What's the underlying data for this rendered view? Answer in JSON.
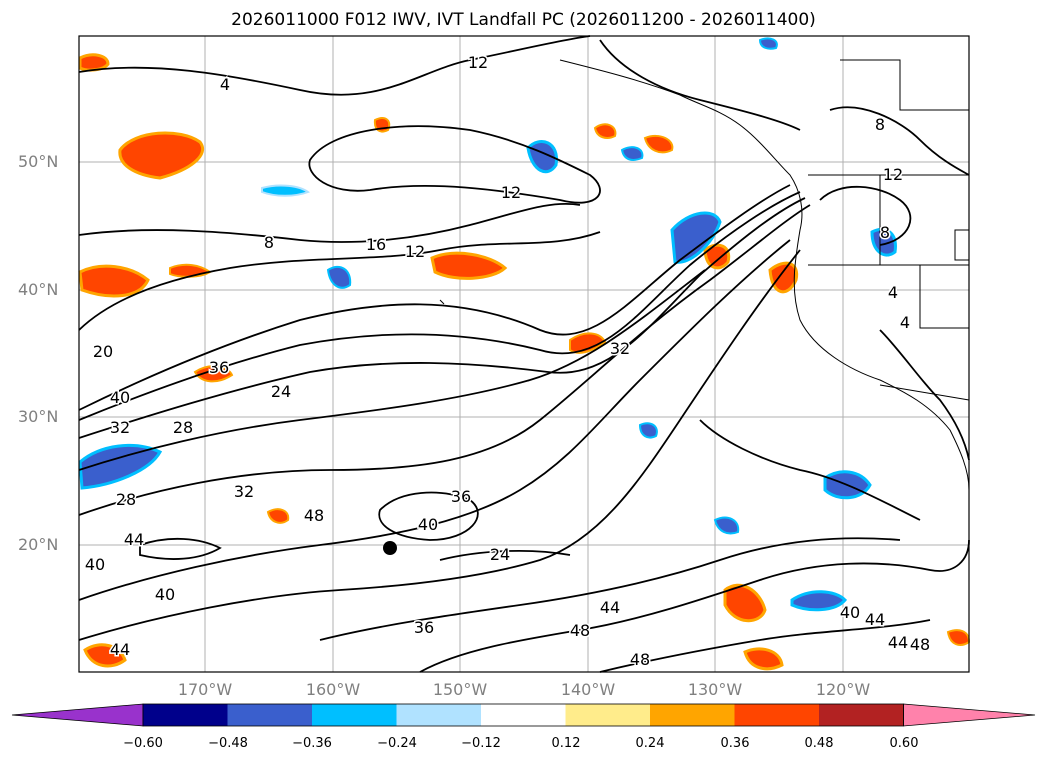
{
  "title": "2026011000 F012 IWV, IVT Landfall PC (2026011200 - 2026011400)",
  "map": {
    "lat_labels": [
      "50°N",
      "40°N",
      "30°N",
      "20°N"
    ],
    "lon_labels": [
      "170°W",
      "160°W",
      "150°W",
      "140°W",
      "130°W",
      "120°W"
    ],
    "contour_labels": [
      "4",
      "12",
      "12",
      "16",
      "8",
      "12",
      "20",
      "40",
      "32",
      "28",
      "36",
      "24",
      "32",
      "28",
      "32",
      "36",
      "48",
      "40",
      "24",
      "44",
      "40",
      "40",
      "44",
      "48",
      "36",
      "48",
      "44",
      "40",
      "44",
      "48",
      "44",
      "8",
      "12",
      "4",
      "4",
      "8"
    ],
    "colors": {
      "land": "#ffffff",
      "grid": "#b0b0b0",
      "contour": "#000000"
    }
  },
  "colorbar": {
    "ticks": [
      "−0.60",
      "−0.48",
      "−0.36",
      "−0.24",
      "−0.12",
      "0.12",
      "0.24",
      "0.36",
      "0.48",
      "0.60"
    ],
    "colors": [
      "#9932cc",
      "#00008b",
      "#3a5fcd",
      "#00bfff",
      "#b0e2ff",
      "#ffffff",
      "#ffec8b",
      "#ffa500",
      "#ff4500",
      "#b22222",
      "#ff82ab"
    ]
  }
}
